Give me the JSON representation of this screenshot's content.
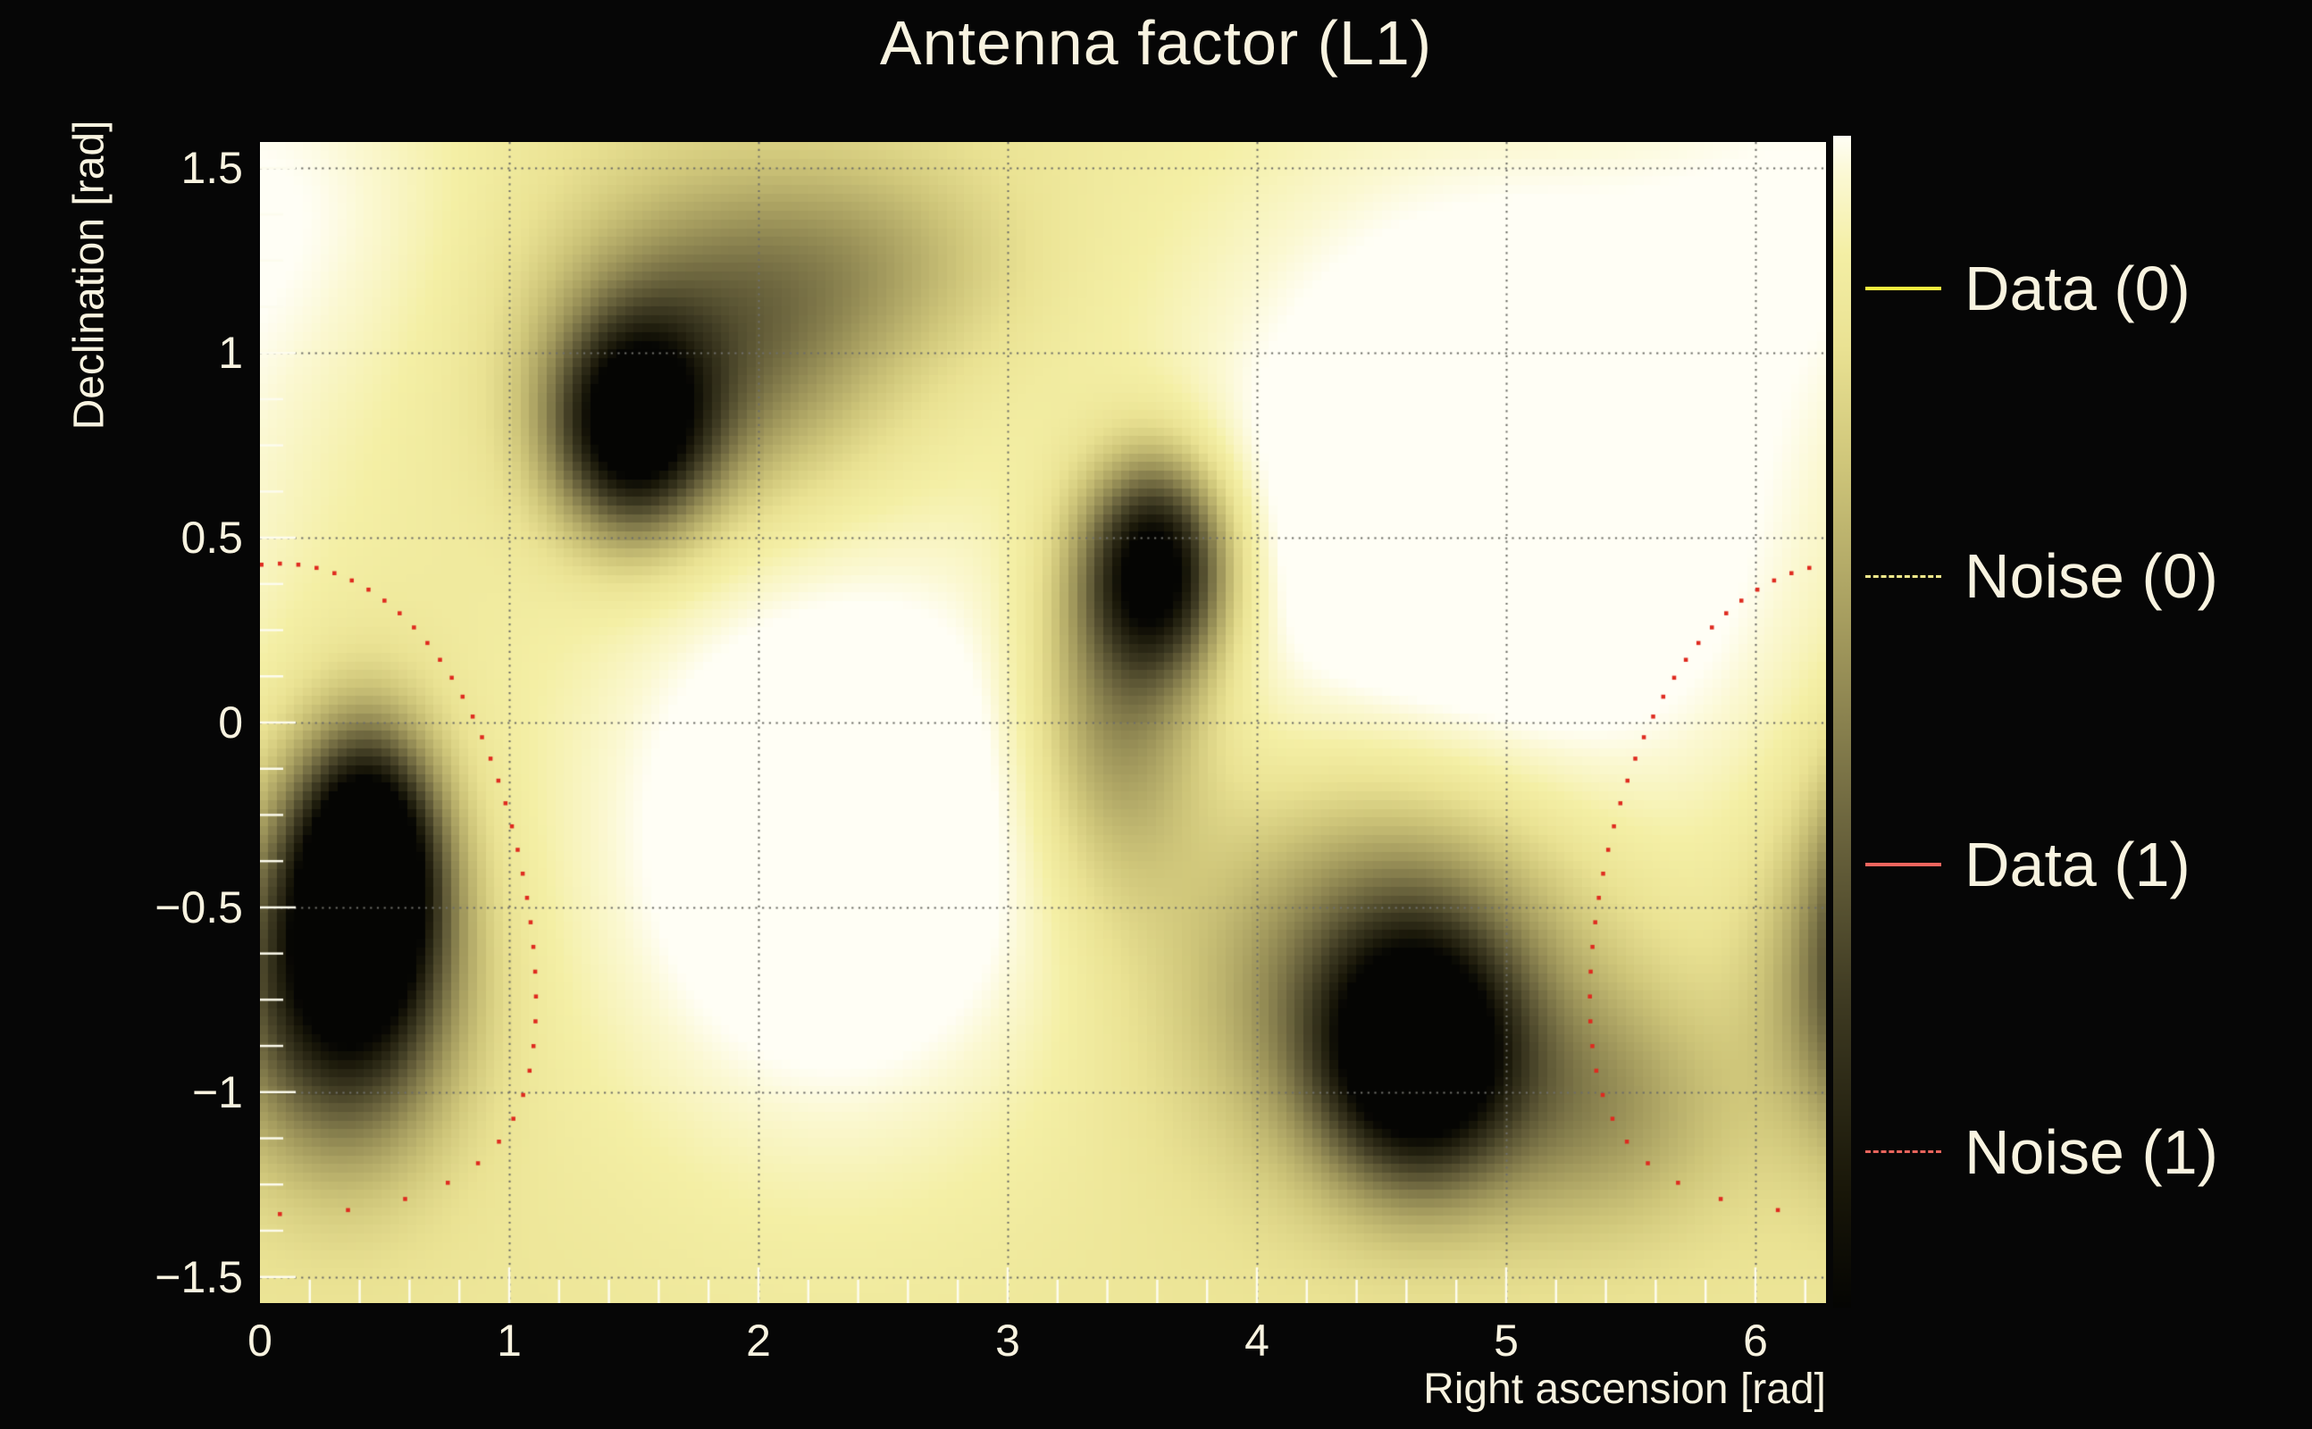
{
  "title": "Antenna factor (L1)",
  "axes": {
    "x": {
      "label": "Right ascension [rad]",
      "range": [
        0,
        6.2832
      ],
      "ticks": [
        {
          "v": 0,
          "label": "0"
        },
        {
          "v": 1,
          "label": "1"
        },
        {
          "v": 2,
          "label": "2"
        },
        {
          "v": 3,
          "label": "3"
        },
        {
          "v": 4,
          "label": "4"
        },
        {
          "v": 5,
          "label": "5"
        },
        {
          "v": 6,
          "label": "6"
        }
      ],
      "minor_step": 0.2
    },
    "y": {
      "label": "Declination [rad]",
      "range": [
        -1.5708,
        1.5708
      ],
      "ticks": [
        {
          "v": 1.5,
          "label": "1.5"
        },
        {
          "v": 1,
          "label": "1"
        },
        {
          "v": 0.5,
          "label": "0.5"
        },
        {
          "v": 0,
          "label": "0"
        },
        {
          "v": -0.5,
          "label": "−0.5"
        },
        {
          "v": -1,
          "label": "−1"
        },
        {
          "v": -1.5,
          "label": "−1.5"
        }
      ],
      "minor_step": 0.125
    }
  },
  "legend": {
    "entries": [
      {
        "label": "Data (0)",
        "color": "#f8ef3f",
        "style": "solid"
      },
      {
        "label": "Noise (0)",
        "color": "#f2e98b",
        "style": "dashed"
      },
      {
        "label": "Data (1)",
        "color": "#f2655e",
        "style": "solid"
      },
      {
        "label": "Noise (1)",
        "color": "#e8645c",
        "style": "dashed"
      }
    ]
  },
  "colors": {
    "background": "#060606",
    "text": "#f8f3e0",
    "grid": "#6e6e68",
    "tick": "#fdfcee"
  },
  "chart_data": {
    "type": "heatmap",
    "title": "Antenna factor (L1)",
    "xlabel": "Right ascension [rad]",
    "ylabel": "Declination [rad]",
    "xlim": [
      0,
      6.2832
    ],
    "ylim": [
      -1.5708,
      1.5708
    ],
    "grid": true,
    "legend_position": "right",
    "colorbar": "right, white(high) to black(low)",
    "colormap_stops": [
      {
        "t": 0.0,
        "c": "#050503"
      },
      {
        "t": 0.1,
        "c": "#191709"
      },
      {
        "t": 0.26,
        "c": "#3e3a22"
      },
      {
        "t": 0.42,
        "c": "#6f6840"
      },
      {
        "t": 0.58,
        "c": "#a49b5e"
      },
      {
        "t": 0.72,
        "c": "#cfc67a"
      },
      {
        "t": 0.82,
        "c": "#eae293"
      },
      {
        "t": 0.9,
        "c": "#f4efa5"
      },
      {
        "t": 0.965,
        "c": "#fbf8d2"
      },
      {
        "t": 1.0,
        "c": "#fffef5"
      }
    ],
    "antenna_minima_ra_dec": [
      [
        1.5,
        0.8
      ],
      [
        3.6,
        0.42
      ],
      [
        0.44,
        -0.38
      ],
      [
        4.64,
        -0.9
      ]
    ],
    "antenna_maxima_ra_dec": [
      [
        2.3,
        -0.3
      ],
      [
        4.95,
        0.6
      ]
    ],
    "noise_ring": {
      "center_ra": 0.08,
      "center_dec": -0.45,
      "radius_rad": 0.88,
      "points": 72,
      "marker_px": 4.5,
      "color": "#df2a1f",
      "note": "red dotted ring, wraps across RA=0/2pi so arcs appear at both left and right plot edges"
    },
    "model": {
      "base": 0.84,
      "bright": [
        {
          "ra": 2.3,
          "dec": -0.3,
          "sx": 1.0,
          "sy": 0.85,
          "a": 0.28
        },
        {
          "ra": 4.95,
          "dec": 0.6,
          "sx": 1.3,
          "sy": 1.0,
          "a": 0.3
        },
        {
          "ra": 0.1,
          "dec": 1.45,
          "sx": 0.8,
          "sy": 0.55,
          "a": 0.12
        }
      ],
      "wells": [
        {
          "ra": 1.5,
          "dec": 0.8,
          "sx": 0.3,
          "sy": 0.27,
          "a": 0.95
        },
        {
          "ra": 1.82,
          "dec": 1.02,
          "sx": 0.62,
          "sy": 0.4,
          "a": 0.45
        },
        {
          "ra": 2.45,
          "dec": 1.25,
          "sx": 0.55,
          "sy": 0.28,
          "a": 0.18
        },
        {
          "ra": 3.6,
          "dec": 0.42,
          "sx": 0.27,
          "sy": 0.27,
          "a": 0.92
        },
        {
          "ra": 3.45,
          "dec": 0.05,
          "sx": 0.34,
          "sy": 0.48,
          "a": 0.4
        },
        {
          "ra": 0.44,
          "dec": -0.38,
          "sx": 0.25,
          "sy": 0.31,
          "a": 0.95
        },
        {
          "ra": 0.32,
          "dec": -0.72,
          "sx": 0.45,
          "sy": 0.42,
          "a": 0.55
        },
        {
          "ra": 4.64,
          "dec": -0.9,
          "sx": 0.36,
          "sy": 0.31,
          "a": 0.98
        },
        {
          "ra": 4.55,
          "dec": -0.68,
          "sx": 0.75,
          "sy": 0.5,
          "a": 0.5
        },
        {
          "ra": 5.35,
          "dec": -1.05,
          "sx": 0.55,
          "sy": 0.32,
          "a": 0.25
        },
        {
          "ra": 6.64,
          "dec": -0.55,
          "sx": 0.36,
          "sy": 0.48,
          "a": 0.5
        }
      ],
      "grid_cells": [
        180,
        134
      ]
    }
  }
}
